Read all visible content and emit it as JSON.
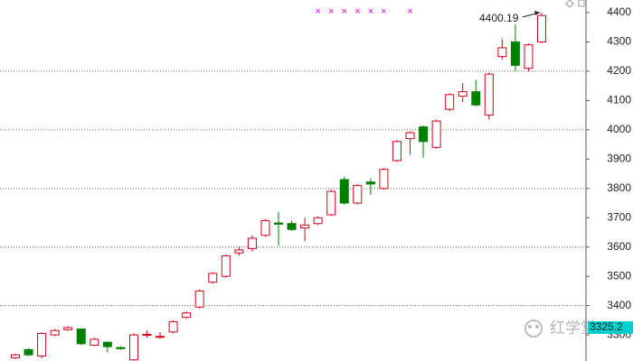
{
  "chart_data": {
    "type": "candlestick",
    "ylim": [
      3211,
      4443
    ],
    "yticks": [
      3300,
      3400,
      3500,
      3600,
      3700,
      3800,
      3900,
      4000,
      4100,
      4200,
      4300,
      4400
    ],
    "grid": [
      3400,
      3600,
      3800,
      4000,
      4200
    ],
    "up_color": "#d0021b",
    "down_color": "#008000",
    "marker_color": "#e000e0",
    "marker_indices": [
      23,
      24,
      25,
      26,
      27,
      28,
      30
    ],
    "marker_symbol": "×",
    "candles": {
      "open": [
        3222,
        3250,
        3228,
        3300,
        3318,
        3320,
        3265,
        3275,
        3257,
        3215,
        3300,
        3292,
        3310,
        3360,
        3395,
        3480,
        3500,
        3580,
        3595,
        3640,
        3682,
        3680,
        3665,
        3680,
        3710,
        3830,
        3750,
        3822,
        3800,
        3895,
        3970,
        4010,
        3940,
        4070,
        4115,
        4130,
        4050,
        4250,
        4300,
        4210,
        4300
      ],
      "high": [
        3236,
        3254,
        3310,
        3320,
        3330,
        3322,
        3290,
        3278,
        3262,
        3305,
        3315,
        3310,
        3350,
        3380,
        3455,
        3515,
        3575,
        3600,
        3640,
        3695,
        3720,
        3690,
        3700,
        3705,
        3795,
        3840,
        3815,
        3835,
        3870,
        3965,
        3995,
        4015,
        4035,
        4125,
        4160,
        4170,
        4195,
        4310,
        4360,
        4295,
        4400.19
      ],
      "low": [
        3218,
        3228,
        3220,
        3296,
        3314,
        3266,
        3262,
        3240,
        3250,
        3212,
        3290,
        3288,
        3305,
        3355,
        3390,
        3475,
        3495,
        3570,
        3585,
        3635,
        3605,
        3655,
        3620,
        3675,
        3705,
        3745,
        3745,
        3778,
        3795,
        3890,
        3915,
        3905,
        3935,
        4065,
        4095,
        4080,
        4035,
        4240,
        4200,
        4200,
        4295
      ],
      "close": [
        3232,
        3232,
        3305,
        3315,
        3325,
        3270,
        3285,
        3260,
        3253,
        3300,
        3302,
        3295,
        3345,
        3375,
        3450,
        3510,
        3570,
        3590,
        3630,
        3690,
        3678,
        3660,
        3675,
        3700,
        3790,
        3750,
        3810,
        3815,
        3865,
        3960,
        3990,
        3960,
        4030,
        4120,
        4130,
        4085,
        4190,
        4280,
        4220,
        4290,
        4390
      ]
    },
    "last_price": 3325.2,
    "last_price_color": "#00d0d0",
    "watermark": "红学堂"
  }
}
